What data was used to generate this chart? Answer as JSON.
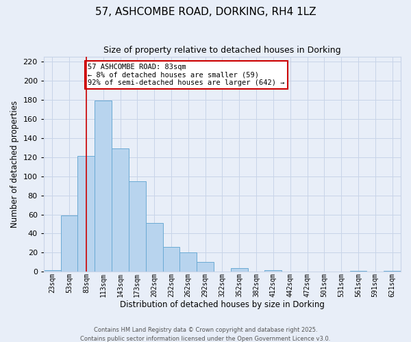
{
  "title": "57, ASHCOMBE ROAD, DORKING, RH4 1LZ",
  "subtitle": "Size of property relative to detached houses in Dorking",
  "xlabel": "Distribution of detached houses by size in Dorking",
  "ylabel": "Number of detached properties",
  "bin_labels": [
    "23sqm",
    "53sqm",
    "83sqm",
    "113sqm",
    "143sqm",
    "173sqm",
    "202sqm",
    "232sqm",
    "262sqm",
    "292sqm",
    "322sqm",
    "352sqm",
    "382sqm",
    "412sqm",
    "442sqm",
    "472sqm",
    "501sqm",
    "531sqm",
    "561sqm",
    "591sqm",
    "621sqm"
  ],
  "bar_values": [
    2,
    59,
    121,
    179,
    129,
    95,
    51,
    26,
    20,
    10,
    0,
    4,
    0,
    2,
    0,
    0,
    0,
    0,
    1,
    0,
    1
  ],
  "bar_color": "#b8d4ee",
  "bar_edge_color": "#6aaad4",
  "vline_x_idx": 2,
  "vline_color": "#cc0000",
  "annotation_text": "57 ASHCOMBE ROAD: 83sqm\n← 8% of detached houses are smaller (59)\n92% of semi-detached houses are larger (642) →",
  "annotation_box_color": "#ffffff",
  "annotation_box_edge": "#cc0000",
  "grid_color": "#c8d4e8",
  "background_color": "#e8eef8",
  "footer1": "Contains HM Land Registry data © Crown copyright and database right 2025.",
  "footer2": "Contains public sector information licensed under the Open Government Licence v3.0.",
  "ylim": [
    0,
    225
  ],
  "yticks": [
    0,
    20,
    40,
    60,
    80,
    100,
    120,
    140,
    160,
    180,
    200,
    220
  ],
  "title_fontsize": 11,
  "subtitle_fontsize": 9,
  "annot_fontsize": 7.5,
  "xlabel_fontsize": 8.5,
  "ylabel_fontsize": 8.5,
  "xtick_fontsize": 7,
  "ytick_fontsize": 8,
  "footer_fontsize": 6
}
